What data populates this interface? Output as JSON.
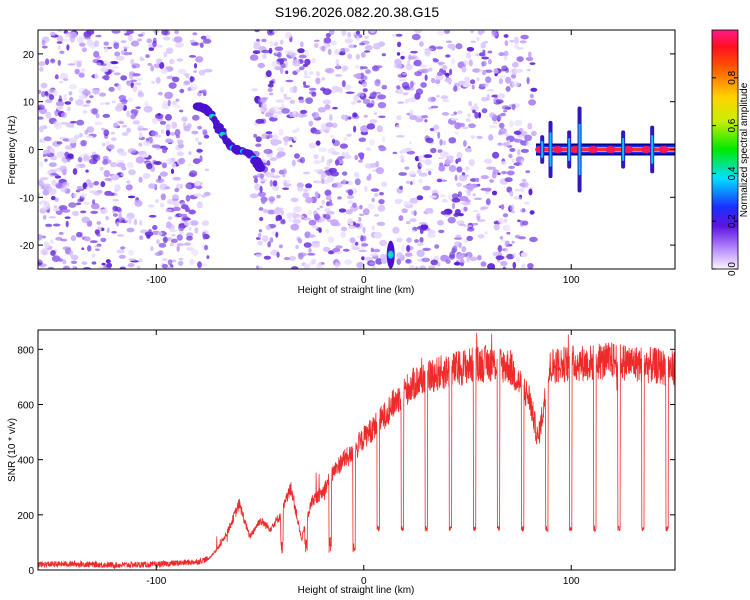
{
  "title": "S196.2026.082.20.38.G15",
  "chart_data": [
    {
      "type": "heatmap",
      "name": "spectrogram",
      "xlabel": "Height of straight line (km)",
      "ylabel": "Frequency (Hz)",
      "xlim": [
        -157,
        150
      ],
      "ylim": [
        -25,
        25
      ],
      "xticks": [
        -100,
        0,
        100
      ],
      "yticks": [
        20,
        10,
        0,
        -10,
        -20
      ],
      "colorbar": {
        "label": "Normalized spectral amplitude",
        "range": [
          0,
          1
        ],
        "ticks": [
          0.0,
          0.2,
          0.4,
          0.6,
          0.8
        ]
      },
      "gaps_km": [
        [
          -75,
          -53
        ],
        [
          10,
          15
        ],
        [
          82,
          150
        ]
      ],
      "features": [
        {
          "label": "tone arc",
          "x_range": [
            -80,
            -50
          ],
          "freq_range": [
            -5,
            9
          ],
          "amplitude": 0.45
        },
        {
          "label": "burst",
          "x": 13,
          "freq": -22,
          "amplitude": 0.45
        },
        {
          "label": "carrier",
          "x_range": [
            83,
            150
          ],
          "freq": 0,
          "amplitude": 0.95
        }
      ]
    },
    {
      "type": "line",
      "name": "snr",
      "xlabel": "Height of straight line (km)",
      "ylabel": "SNR (10 * v/v)",
      "xlim": [
        -157,
        150
      ],
      "ylim": [
        0,
        870
      ],
      "xticks": [
        -100,
        0,
        100
      ],
      "yticks": [
        0,
        200,
        400,
        600,
        800
      ],
      "color": "#ee2a2a",
      "series": [
        {
          "name": "SNR",
          "x": [
            -157,
            -140,
            -120,
            -100,
            -90,
            -80,
            -75,
            -70,
            -65,
            -60,
            -55,
            -50,
            -45,
            -40,
            -35,
            -30,
            -25,
            -20,
            -15,
            -10,
            -5,
            0,
            5,
            10,
            15,
            20,
            25,
            30,
            40,
            50,
            60,
            70,
            80,
            84,
            90,
            100,
            110,
            120,
            130,
            140,
            150
          ],
          "y": [
            20,
            22,
            18,
            20,
            25,
            30,
            40,
            80,
            150,
            240,
            120,
            180,
            150,
            200,
            300,
            110,
            250,
            280,
            350,
            400,
            420,
            480,
            520,
            560,
            610,
            650,
            680,
            700,
            720,
            740,
            750,
            740,
            620,
            470,
            740,
            750,
            750,
            760,
            750,
            740,
            730
          ]
        }
      ]
    }
  ]
}
